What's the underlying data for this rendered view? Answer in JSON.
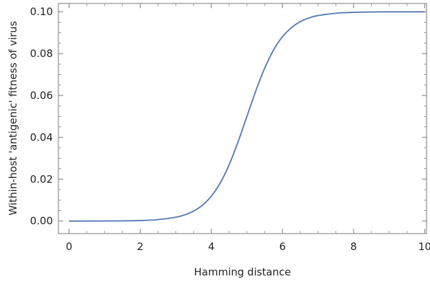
{
  "chart_data": {
    "type": "line",
    "title": "",
    "xlabel": "Hamming distance",
    "ylabel": "Within-host 'antigenic' fitness of virus",
    "xlim": [
      -0.3,
      10.05
    ],
    "ylim": [
      -0.006,
      0.104
    ],
    "xticks": [
      0,
      2,
      4,
      6,
      8,
      10
    ],
    "xtick_labels": [
      "0",
      "2",
      "4",
      "6",
      "8",
      "10"
    ],
    "yticks": [
      0.0,
      0.02,
      0.04,
      0.06,
      0.08,
      0.1
    ],
    "ytick_labels": [
      "0.00",
      "0.02",
      "0.04",
      "0.06",
      "0.08",
      "0.10"
    ],
    "grid": false,
    "series": [
      {
        "color": "#5b7fb5",
        "x": [
          0,
          0.5,
          1,
          1.5,
          2,
          2.5,
          3,
          3.25,
          3.5,
          3.75,
          4,
          4.25,
          4.5,
          4.75,
          5,
          5.25,
          5.5,
          5.75,
          6,
          6.25,
          6.5,
          6.75,
          7,
          7.5,
          8,
          8.5,
          9,
          9.5,
          10
        ],
        "y": [
          4.5e-06,
          1.23e-05,
          3.35e-05,
          9.11e-05,
          0.000247,
          0.000669,
          0.0018,
          0.00293,
          0.00474,
          0.00759,
          0.0119,
          0.0182,
          0.0269,
          0.0378,
          0.05,
          0.0622,
          0.0731,
          0.0818,
          0.0881,
          0.0924,
          0.0953,
          0.0971,
          0.0982,
          0.0993,
          0.09975,
          0.09991,
          0.09997,
          0.09999,
          0.1
        ]
      }
    ]
  }
}
